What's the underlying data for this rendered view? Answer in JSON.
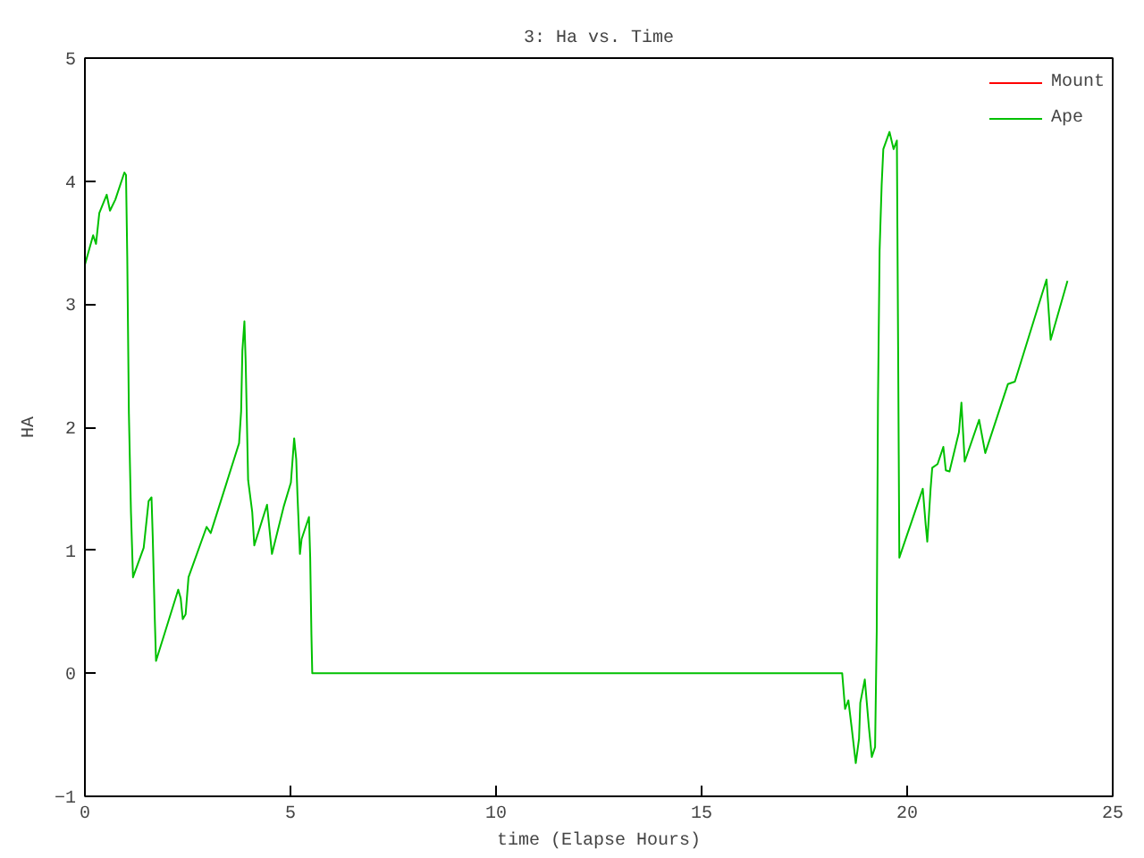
{
  "chart_data": {
    "type": "line",
    "title": "3: Ha vs. Time",
    "xlabel": "time (Elapse Hours)",
    "ylabel": "HA",
    "x": [
      0,
      0.2,
      0.27,
      0.35,
      0.53,
      0.61,
      0.74,
      0.96,
      1.0,
      1.03,
      1.07,
      1.12,
      1.17,
      1.43,
      1.55,
      1.62,
      1.65,
      1.7,
      1.73,
      2.27,
      2.33,
      2.38,
      2.45,
      2.52,
      2.96,
      3.06,
      3.75,
      3.8,
      3.83,
      3.88,
      3.91,
      3.97,
      4.07,
      4.12,
      4.43,
      4.55,
      4.84,
      5.01,
      5.09,
      5.14,
      5.17,
      5.23,
      5.27,
      5.39,
      5.45,
      5.48,
      5.51,
      5.53,
      18.42,
      18.49,
      18.57,
      18.65,
      18.75,
      18.83,
      18.86,
      18.97,
      19.07,
      19.14,
      19.22,
      19.26,
      19.29,
      19.33,
      19.38,
      19.42,
      19.57,
      19.67,
      19.75,
      19.78,
      19.81,
      20.38,
      20.45,
      20.49,
      20.57,
      20.61,
      20.74,
      20.88,
      20.94,
      21.03,
      21.26,
      21.32,
      21.4,
      21.75,
      21.9,
      22.45,
      22.62,
      23.39,
      23.49,
      23.9
    ],
    "series": [
      {
        "name": "Mount",
        "color": "#ff0000",
        "values": [
          null,
          null,
          null,
          null,
          null,
          null,
          null,
          null,
          null,
          null,
          null,
          null,
          null,
          null,
          null,
          null,
          null,
          null,
          null,
          null,
          null,
          null,
          null,
          null,
          null,
          null,
          null,
          null,
          null,
          null,
          null,
          null,
          null,
          null,
          null,
          null,
          null,
          null,
          null,
          null,
          null,
          null,
          null,
          null,
          null,
          null,
          null,
          null,
          null,
          null,
          null,
          null,
          null,
          null,
          null,
          null,
          null,
          null,
          null,
          null,
          null,
          null,
          null,
          null,
          null,
          null,
          null,
          null,
          null,
          null,
          null,
          null,
          null,
          null,
          null,
          null,
          null,
          null,
          null,
          null,
          null,
          null,
          null,
          null,
          null,
          null,
          null,
          null
        ]
      },
      {
        "name": "Ape",
        "color": "#00c000",
        "values": [
          3.32,
          3.56,
          3.49,
          3.74,
          3.89,
          3.76,
          3.85,
          4.07,
          4.05,
          3.39,
          2.11,
          1.31,
          0.78,
          1.02,
          1.4,
          1.43,
          1.11,
          0.44,
          0.1,
          0.68,
          0.61,
          0.44,
          0.48,
          0.78,
          1.19,
          1.14,
          1.87,
          2.13,
          2.62,
          2.86,
          2.54,
          1.57,
          1.31,
          1.04,
          1.37,
          0.97,
          1.36,
          1.55,
          1.91,
          1.74,
          1.45,
          0.97,
          1.09,
          1.21,
          1.27,
          0.94,
          0.31,
          0,
          0,
          -0.29,
          -0.22,
          -0.44,
          -0.73,
          -0.53,
          -0.24,
          -0.05,
          -0.44,
          -0.68,
          -0.6,
          0.34,
          2.2,
          3.44,
          3.97,
          4.26,
          4.4,
          4.26,
          4.33,
          2.66,
          0.94,
          1.5,
          1.21,
          1.07,
          1.5,
          1.67,
          1.7,
          1.84,
          1.65,
          1.64,
          1.96,
          2.2,
          1.72,
          2.06,
          1.79,
          2.35,
          2.37,
          3.2,
          2.71,
          3.19
        ]
      }
    ],
    "xlim": [
      0,
      25
    ],
    "xticks": [
      0,
      5,
      10,
      15,
      20,
      25
    ],
    "ylim": [
      -1,
      5
    ],
    "yticks": [
      -1,
      0,
      1,
      2,
      3,
      4,
      5
    ],
    "grid": false,
    "legend": "top right",
    "marker": "none",
    "line_style": "solid"
  }
}
